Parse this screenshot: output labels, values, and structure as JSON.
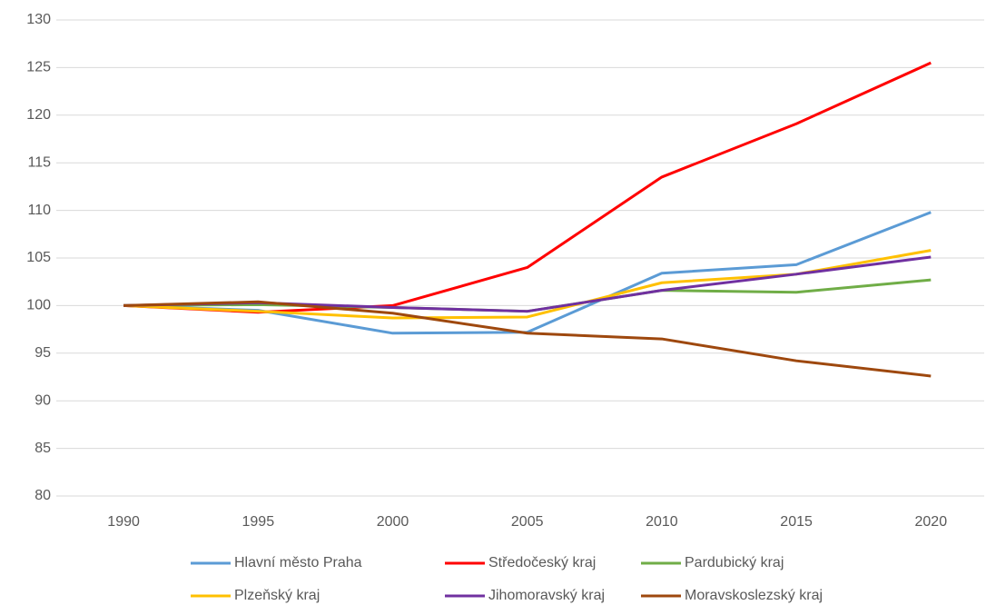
{
  "chart_data": {
    "type": "line",
    "categories": [
      "1990",
      "1995",
      "2000",
      "2005",
      "2010",
      "2015",
      "2020"
    ],
    "series": [
      {
        "name": "Hlavní město Praha",
        "color": "#5b9bd5",
        "values": [
          100,
          99.5,
          97.1,
          97.2,
          103.4,
          104.3,
          109.8
        ]
      },
      {
        "name": "Středočeský kraj",
        "color": "#ff0000",
        "values": [
          100,
          99.3,
          100.0,
          104.0,
          113.5,
          119.1,
          125.5
        ]
      },
      {
        "name": "Pardubický kraj",
        "color": "#70ad47",
        "values": [
          100,
          100.1,
          99.8,
          99.4,
          101.6,
          101.4,
          102.7
        ]
      },
      {
        "name": "Plzeňský kraj",
        "color": "#ffc000",
        "values": [
          100,
          99.4,
          98.7,
          98.8,
          102.4,
          103.3,
          105.8
        ]
      },
      {
        "name": "Jihomoravský kraj",
        "color": "#7030a0",
        "values": [
          100,
          100.3,
          99.8,
          99.4,
          101.6,
          103.3,
          105.1
        ]
      },
      {
        "name": "Moravskoslezský kraj",
        "color": "#9e480e",
        "values": [
          100,
          100.4,
          99.2,
          97.1,
          96.5,
          94.2,
          92.6
        ]
      }
    ],
    "ylim": [
      80,
      130
    ],
    "yticks": [
      80,
      85,
      90,
      95,
      100,
      105,
      110,
      115,
      120,
      125,
      130
    ],
    "grid": true,
    "legend": "bottom"
  }
}
